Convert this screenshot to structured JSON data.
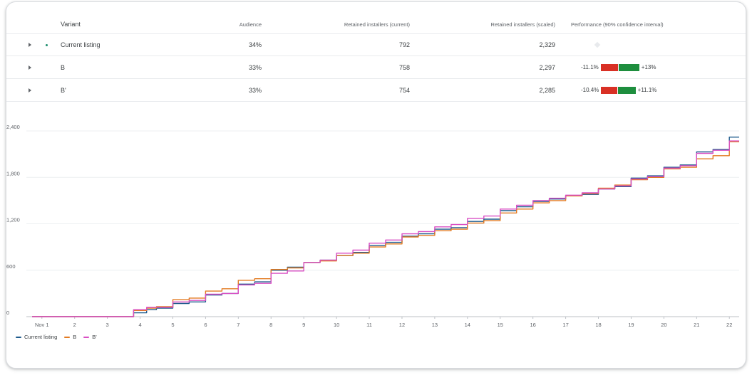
{
  "table": {
    "headers": {
      "variant": "Variant",
      "audience": "Audience",
      "current": "Retained installers (current)",
      "scaled": "Retained installers (scaled)",
      "performance": "Performance (90% confidence interval)"
    },
    "rows": [
      {
        "variant": "Current listing",
        "audience": "34%",
        "current": "792",
        "scaled": "2,329"
      },
      {
        "variant": "B",
        "audience": "33%",
        "current": "758",
        "scaled": "2,297",
        "ci_low": "-11.1%",
        "ci_high": "+13%",
        "ci_low_value": -11.1,
        "ci_high_value": 13
      },
      {
        "variant": "B'",
        "audience": "33%",
        "current": "754",
        "scaled": "2,285",
        "ci_low": "-10.4%",
        "ci_high": "+11.1%",
        "ci_low_value": -10.4,
        "ci_high_value": 11.1
      }
    ]
  },
  "colors": {
    "current": "#1e5b8c",
    "b": "#e37b22",
    "bprime": "#d94fc4",
    "negative": "#d93025",
    "positive": "#1e8e3e",
    "dot": "#1e8e6e"
  },
  "legend": [
    "Current listing",
    "B",
    "B'"
  ],
  "chart_data": {
    "type": "line",
    "x_tick_labels": [
      "Nov 1",
      "2",
      "3",
      "4",
      "5",
      "6",
      "7",
      "8",
      "9",
      "10",
      "11",
      "12",
      "13",
      "14",
      "15",
      "16",
      "17",
      "18",
      "19",
      "20",
      "21",
      "22"
    ],
    "y_tick_labels": [
      "0",
      "600",
      "1,200",
      "1,800",
      "2,400"
    ],
    "ylim": [
      0,
      2400
    ],
    "xlim": [
      0.7,
      22.3
    ],
    "grid": true,
    "legend_position": "bottom-left",
    "series": [
      {
        "name": "Current listing",
        "x": [
          0.7,
          3.5,
          3.8,
          4.2,
          4.5,
          5,
          5.5,
          6,
          6.5,
          7,
          7.5,
          8,
          8.5,
          9,
          9.5,
          10,
          10.5,
          11,
          11.5,
          12,
          12.5,
          13,
          13.5,
          14,
          14.5,
          15,
          15.5,
          16,
          16.5,
          17,
          17.5,
          18,
          18.5,
          19,
          19.5,
          20,
          20.5,
          21,
          21.5,
          22,
          22.3
        ],
        "y": [
          0,
          0,
          50,
          90,
          110,
          170,
          190,
          280,
          300,
          420,
          450,
          600,
          640,
          700,
          730,
          790,
          830,
          920,
          960,
          1040,
          1070,
          1130,
          1150,
          1230,
          1260,
          1370,
          1420,
          1490,
          1520,
          1560,
          1580,
          1650,
          1680,
          1790,
          1820,
          1930,
          1960,
          2130,
          2160,
          2320,
          2320
        ]
      },
      {
        "name": "B",
        "x": [
          0.7,
          3.5,
          3.8,
          4.2,
          4.5,
          5,
          5.5,
          6,
          6.5,
          7,
          7.5,
          8,
          8.5,
          9,
          9.5,
          10,
          10.5,
          11,
          11.5,
          12,
          12.5,
          13,
          13.5,
          14,
          14.5,
          15,
          15.5,
          16,
          16.5,
          17,
          17.5,
          18,
          18.5,
          19,
          19.5,
          20,
          20.5,
          21,
          21.5,
          22,
          22.3
        ],
        "y": [
          0,
          0,
          80,
          110,
          130,
          220,
          240,
          330,
          360,
          470,
          490,
          610,
          630,
          700,
          720,
          790,
          820,
          900,
          940,
          1030,
          1050,
          1110,
          1130,
          1210,
          1240,
          1340,
          1390,
          1470,
          1500,
          1560,
          1590,
          1660,
          1700,
          1770,
          1800,
          1910,
          1930,
          2040,
          2080,
          2260,
          2260
        ]
      },
      {
        "name": "B'",
        "x": [
          0.7,
          3.5,
          3.8,
          4.2,
          4.5,
          5,
          5.5,
          6,
          6.5,
          7,
          7.5,
          8,
          8.5,
          9,
          9.5,
          10,
          10.5,
          11,
          11.5,
          12,
          12.5,
          13,
          13.5,
          14,
          14.5,
          15,
          15.5,
          16,
          16.5,
          17,
          17.5,
          18,
          18.5,
          19,
          19.5,
          20,
          20.5,
          21,
          21.5,
          22,
          22.3
        ],
        "y": [
          0,
          0,
          90,
          120,
          120,
          190,
          210,
          290,
          300,
          410,
          430,
          560,
          590,
          700,
          730,
          820,
          860,
          950,
          990,
          1070,
          1100,
          1160,
          1190,
          1270,
          1300,
          1390,
          1440,
          1500,
          1530,
          1570,
          1600,
          1650,
          1690,
          1780,
          1810,
          1920,
          1950,
          2110,
          2150,
          2270,
          2270
        ]
      }
    ]
  }
}
